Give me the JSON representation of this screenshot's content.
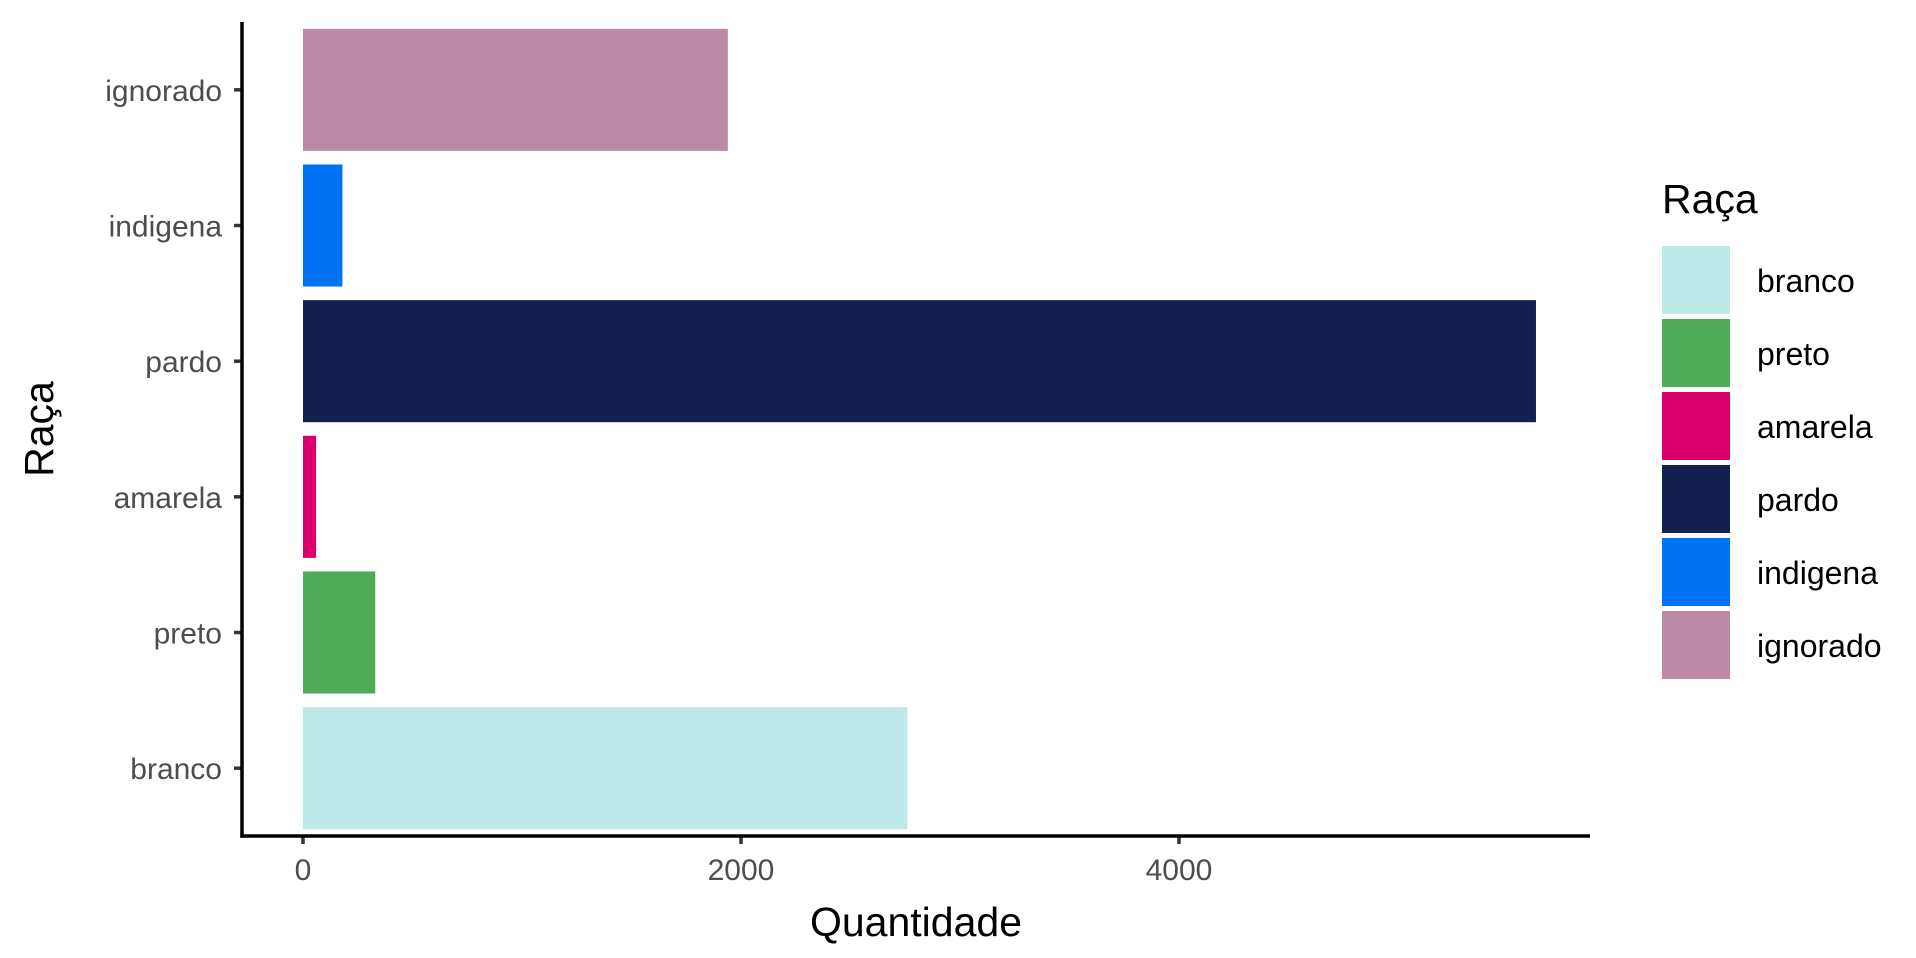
{
  "chart_data": {
    "type": "bar",
    "orientation": "horizontal",
    "categories": [
      "branco",
      "preto",
      "amarela",
      "pardo",
      "indigena",
      "ignorado"
    ],
    "values": [
      2760,
      330,
      60,
      5630,
      180,
      1940
    ],
    "colors": [
      "#bfe8e8",
      "#4eab5a",
      "#d9006c",
      "#131f4c",
      "#0073f5",
      "#bb8ba5"
    ],
    "xlabel": "Quantidade",
    "ylabel": "Raça",
    "xlim": [
      -280,
      5910
    ],
    "xticks": [
      0,
      2000,
      4000
    ],
    "grid": false,
    "legend": {
      "title": "Raça",
      "position": "right",
      "items": [
        "branco",
        "preto",
        "amarela",
        "pardo",
        "indigena",
        "ignorado"
      ]
    }
  }
}
